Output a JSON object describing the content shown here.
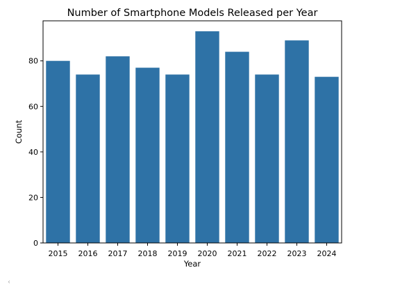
{
  "chart_data": {
    "type": "bar",
    "title": "Number of Smartphone Models Released per Year",
    "xlabel": "Year",
    "ylabel": "Count",
    "categories": [
      "2015",
      "2016",
      "2017",
      "2018",
      "2019",
      "2020",
      "2021",
      "2022",
      "2023",
      "2024"
    ],
    "values": [
      80,
      74,
      82,
      77,
      74,
      93,
      84,
      74,
      89,
      73
    ],
    "ylim": [
      0,
      97.6
    ],
    "yticks": [
      0,
      20,
      40,
      60,
      80
    ],
    "grid": false,
    "bar_color": "#2e72a6"
  },
  "ui": {
    "scroll_indicator": "‹"
  }
}
